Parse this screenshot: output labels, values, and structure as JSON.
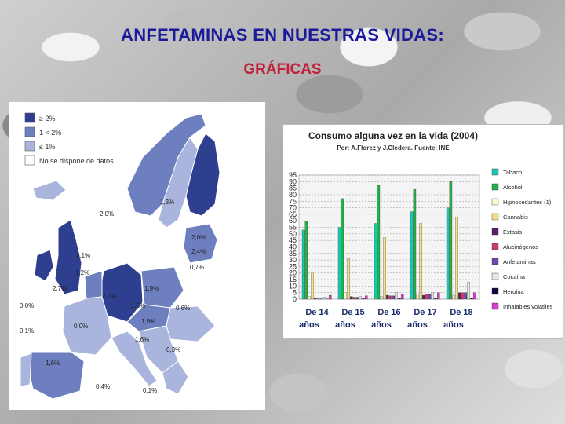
{
  "slide": {
    "title": "ANFETAMINAS EN NUESTRAS VIDAS:",
    "subtitle": "GRÁFICAS"
  },
  "colors": {
    "title": "#1a1a9a",
    "subtitle": "#c0203a",
    "map_high": "#2e3f8f",
    "map_mid": "#6d7fbf",
    "map_low": "#a9b5dc",
    "map_none": "#ffffff"
  },
  "map": {
    "legend": [
      {
        "label": "≥ 2%",
        "color": "#2e3f8f"
      },
      {
        "label": "1 < 2%",
        "color": "#6d7fbf"
      },
      {
        "label": "≤ 1%",
        "color": "#a9b5dc"
      },
      {
        "label": "No se dispone de datos",
        "color": "#ffffff"
      }
    ],
    "labels": [
      "1,3%",
      "2,0%",
      "2,0%",
      "2,4%",
      "3,1%",
      "0,7%",
      "1,2%",
      "1,9%",
      "2,7%",
      "2,2%",
      "0,0%",
      "1,6%",
      "0,6%",
      "0,0%",
      "1,9%",
      "0,1%",
      "1,6%",
      "0,3%",
      "1,6%",
      "0,4%",
      "0,1%"
    ]
  },
  "chart_data": {
    "type": "bar",
    "title": "Consumo alguna vez en la vida (2004)",
    "subtitle": "Por: A.Florez y J.Cledera. Fuente: INE",
    "categories": [
      "De 14 años",
      "De 15 años",
      "De 16 años",
      "De 17 años",
      "De 18 años"
    ],
    "ylim": [
      0,
      95
    ],
    "yticks": [
      0,
      5,
      10,
      15,
      20,
      25,
      30,
      35,
      40,
      45,
      50,
      55,
      60,
      65,
      70,
      75,
      80,
      85,
      90,
      95
    ],
    "grid": true,
    "legend_position": "right",
    "series": [
      {
        "name": "Tabaco",
        "color": "#19c8b4",
        "values": [
          53,
          55,
          58,
          67,
          70
        ]
      },
      {
        "name": "Alcohol",
        "color": "#22b04a",
        "values": [
          60,
          77,
          87,
          84,
          90
        ]
      },
      {
        "name": "Hipnosedantes (1)",
        "color": "#fffacd",
        "values": [
          2,
          5,
          2,
          4,
          3
        ]
      },
      {
        "name": "Cannabis",
        "color": "#f5e08a",
        "values": [
          20,
          31,
          47,
          58,
          63
        ]
      },
      {
        "name": "Éxtasis",
        "color": "#552266",
        "values": [
          0.5,
          2,
          3,
          3,
          5
        ]
      },
      {
        "name": "Alucinógenos",
        "color": "#cc3b66",
        "values": [
          0.3,
          1.5,
          2.5,
          4,
          5
        ]
      },
      {
        "name": "Anfetaminas",
        "color": "#6f48a8",
        "values": [
          0.3,
          1.5,
          2.5,
          3.5,
          5
        ]
      },
      {
        "name": "Cocaína",
        "color": "#e6e6e6",
        "values": [
          1.5,
          2,
          5,
          5,
          13
        ]
      },
      {
        "name": "Heroína",
        "color": "#0a0a40",
        "values": [
          0.2,
          0.4,
          0.4,
          0.5,
          0.6
        ]
      },
      {
        "name": "Inhalables volátiles",
        "color": "#d23cc8",
        "values": [
          3,
          2.5,
          4,
          5,
          5
        ]
      }
    ]
  }
}
